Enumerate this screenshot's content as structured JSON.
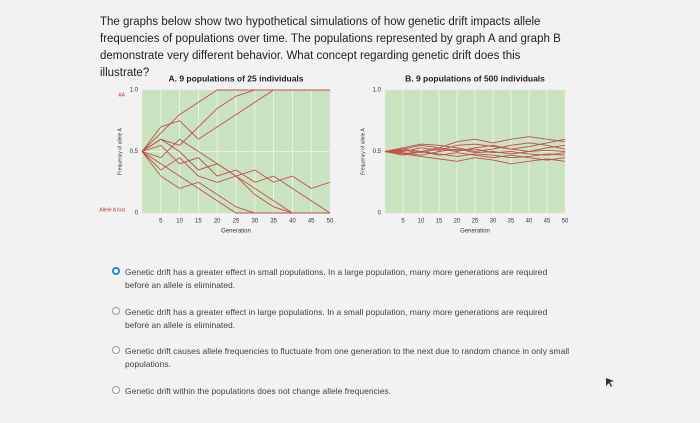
{
  "question": "The graphs below show two hypothetical simulations of how genetic drift impacts allele frequencies of populations over time. The populations represented by graph A and graph B demonstrate very different behavior. What concept regarding genetic drift does this illustrate?",
  "charts": [
    {
      "type": "line",
      "title": "A. 9 populations of 25 individuals",
      "x_label": "Generation",
      "y_label": "Frequency of allele A",
      "annotations": [
        "AA",
        "Allele A lost"
      ],
      "color": "#c0504d",
      "xlim": [
        0,
        50
      ],
      "ylim": [
        0,
        1
      ],
      "xticks": [
        0,
        5,
        10,
        15,
        20,
        25,
        30,
        35,
        40,
        45,
        50
      ],
      "yticks": [
        0,
        0.5,
        {
          "value": 1,
          "label": "1.0"
        }
      ],
      "x": [
        0,
        5,
        10,
        15,
        20,
        25,
        30,
        35,
        40,
        45,
        50
      ],
      "series": [
        {
          "values": [
            0.5,
            0.65,
            0.8,
            0.9,
            1,
            1,
            1,
            1,
            1,
            1,
            1
          ]
        },
        {
          "values": [
            0.5,
            0.4,
            0.3,
            0.2,
            0.1,
            0,
            0,
            0,
            0,
            0,
            0
          ]
        },
        {
          "values": [
            0.5,
            0.6,
            0.55,
            0.7,
            0.85,
            0.95,
            1,
            1,
            1,
            1,
            1
          ]
        },
        {
          "values": [
            0.5,
            0.35,
            0.45,
            0.3,
            0.25,
            0.3,
            0.2,
            0.1,
            0,
            0,
            0
          ]
        },
        {
          "values": [
            0.5,
            0.55,
            0.4,
            0.45,
            0.3,
            0.35,
            0.25,
            0.3,
            0.2,
            0.1,
            0
          ]
        },
        {
          "values": [
            0.5,
            0.7,
            0.75,
            0.6,
            0.7,
            0.8,
            0.9,
            1,
            1,
            1,
            1
          ]
        },
        {
          "values": [
            0.5,
            0.45,
            0.6,
            0.5,
            0.4,
            0.3,
            0.15,
            0.05,
            0,
            0,
            0
          ]
        },
        {
          "values": [
            0.5,
            0.3,
            0.2,
            0.25,
            0.15,
            0.05,
            0,
            0,
            0,
            0,
            0
          ]
        },
        {
          "values": [
            0.5,
            0.6,
            0.5,
            0.35,
            0.4,
            0.3,
            0.35,
            0.25,
            0.3,
            0.2,
            0.25
          ]
        }
      ]
    },
    {
      "type": "line",
      "title": "B. 9 populations of 500 individuals",
      "x_label": "Generation",
      "y_label": "Frequency of allele A",
      "color": "#c0504d",
      "xlim": [
        0,
        50
      ],
      "ylim": [
        0,
        1
      ],
      "xticks": [
        0,
        5,
        10,
        15,
        20,
        25,
        30,
        35,
        40,
        45,
        50
      ],
      "yticks": [
        0,
        0.5,
        {
          "value": 1,
          "label": "1.0"
        }
      ],
      "x": [
        0,
        5,
        10,
        15,
        20,
        25,
        30,
        35,
        40,
        45,
        50
      ],
      "series": [
        {
          "values": [
            0.5,
            0.52,
            0.55,
            0.53,
            0.58,
            0.6,
            0.57,
            0.6,
            0.62,
            0.6,
            0.58
          ]
        },
        {
          "values": [
            0.5,
            0.48,
            0.46,
            0.44,
            0.42,
            0.45,
            0.43,
            0.4,
            0.42,
            0.44,
            0.42
          ]
        },
        {
          "values": [
            0.5,
            0.51,
            0.49,
            0.52,
            0.5,
            0.53,
            0.55,
            0.52,
            0.5,
            0.53,
            0.55
          ]
        },
        {
          "values": [
            0.5,
            0.47,
            0.5,
            0.48,
            0.46,
            0.48,
            0.47,
            0.45,
            0.46,
            0.48,
            0.47
          ]
        },
        {
          "values": [
            0.5,
            0.53,
            0.56,
            0.55,
            0.53,
            0.5,
            0.52,
            0.55,
            0.57,
            0.55,
            0.52
          ]
        },
        {
          "values": [
            0.5,
            0.49,
            0.47,
            0.5,
            0.52,
            0.49,
            0.5,
            0.48,
            0.5,
            0.51,
            0.5
          ]
        },
        {
          "values": [
            0.5,
            0.52,
            0.5,
            0.47,
            0.49,
            0.47,
            0.45,
            0.47,
            0.45,
            0.43,
            0.45
          ]
        },
        {
          "values": [
            0.5,
            0.5,
            0.53,
            0.51,
            0.55,
            0.56,
            0.54,
            0.52,
            0.54,
            0.57,
            0.6
          ]
        },
        {
          "values": [
            0.5,
            0.48,
            0.5,
            0.53,
            0.51,
            0.52,
            0.49,
            0.5,
            0.48,
            0.47,
            0.49
          ]
        }
      ]
    }
  ],
  "options": [
    {
      "text": "Genetic drift has a greater effect in small populations. In a large population, many more generations are required before an allele is eliminated.",
      "selected": true
    },
    {
      "text": "Genetic drift has a greater effect in large populations. In a small population, many more generations are required before an allele is eliminated.",
      "selected": false
    },
    {
      "text": "Genetic drift causes allele frequencies to fluctuate from one generation to the next due to random chance in only small populations.",
      "selected": false
    },
    {
      "text": "Genetic drift within the populations does not change allele frequencies.",
      "selected": false
    }
  ]
}
